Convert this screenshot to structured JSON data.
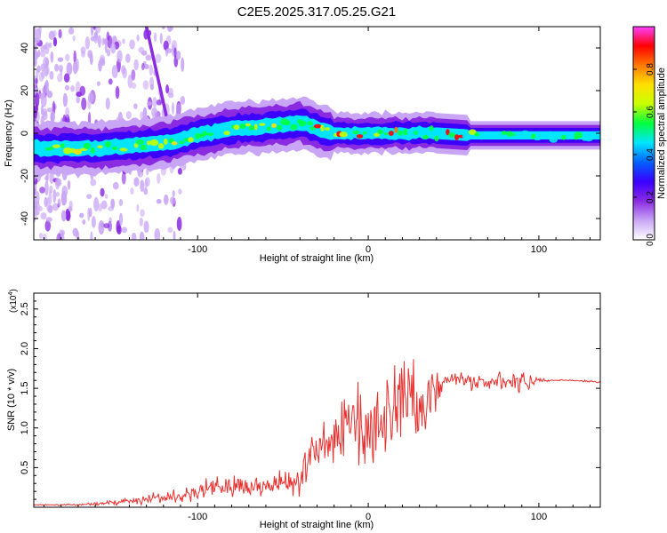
{
  "title": "C2E5.2025.317.05.25.G21",
  "chart_data": [
    {
      "type": "heatmap",
      "name": "spectrogram",
      "xlabel": "Height of straight line (km)",
      "ylabel": "Frequency (Hz)",
      "xlim": [
        -196,
        136
      ],
      "ylim": [
        -50,
        50
      ],
      "xticks": [
        -100,
        0,
        100
      ],
      "xtick_labels": [
        "-100",
        "0",
        "100"
      ],
      "yticks": [
        -40,
        -20,
        0,
        20,
        40
      ],
      "ytick_labels": [
        "-40",
        "-20",
        "0",
        "20",
        "40"
      ],
      "colorbar": {
        "label": "Normalized spectral amplitude",
        "range": [
          0,
          1
        ],
        "ticks": [
          0.0,
          0.2,
          0.4,
          0.6,
          0.8
        ],
        "tick_labels": [
          "0.0",
          "0.2",
          "0.4",
          "0.6",
          "0.8"
        ],
        "colors": [
          "#ffffff",
          "#c9a6f5",
          "#8a2be2",
          "#3b00ff",
          "#0060ff",
          "#00e5ff",
          "#00ff40",
          "#c8ff00",
          "#ffe000",
          "#ff7a00",
          "#ff0000",
          "#ff40ff"
        ]
      },
      "ridge": {
        "x": [
          -196,
          -180,
          -160,
          -140,
          -125,
          -110,
          -95,
          -80,
          -65,
          -50,
          -38,
          -30,
          -20,
          -10,
          0,
          20,
          40,
          60,
          80,
          100,
          120,
          136
        ],
        "freq": [
          -7,
          -7,
          -7,
          -6,
          -5,
          -3,
          0,
          2,
          3,
          4,
          5,
          2,
          0,
          0,
          0,
          0,
          0,
          -1,
          -1,
          -1,
          -1,
          -1
        ]
      },
      "streak": {
        "x": [
          -130,
          -118
        ],
        "freq": [
          50,
          7
        ]
      }
    },
    {
      "type": "line",
      "name": "snr",
      "xlabel": "Height of straight line (km)",
      "ylabel": "SNR (10 * v/v)",
      "scale_label": "(x10",
      "scale_exponent": "4",
      "scale_suffix": ")",
      "xlim": [
        -196,
        136
      ],
      "ylim": [
        0,
        2.7
      ],
      "xticks": [
        -100,
        0,
        100
      ],
      "xtick_labels": [
        "-100",
        "0",
        "100"
      ],
      "yticks": [
        0.5,
        1.0,
        1.5,
        2.0,
        2.5
      ],
      "ytick_labels": [
        "0.5",
        "1.0",
        "1.5",
        "2.0",
        "2.5"
      ],
      "color": "#e8312f",
      "series": [
        {
          "name": "SNR",
          "x": [
            -196,
            -170,
            -150,
            -130,
            -110,
            -100,
            -90,
            -80,
            -70,
            -60,
            -50,
            -40,
            -35,
            -30,
            -25,
            -20,
            -15,
            -10,
            -5,
            0,
            5,
            10,
            15,
            20,
            25,
            30,
            35,
            40,
            45,
            50,
            60,
            70,
            80,
            90,
            95,
            100,
            105,
            110,
            120,
            136
          ],
          "mean": [
            0.03,
            0.03,
            0.06,
            0.1,
            0.15,
            0.2,
            0.24,
            0.28,
            0.27,
            0.25,
            0.3,
            0.35,
            0.55,
            0.75,
            0.85,
            0.9,
            0.95,
            1.0,
            1.1,
            0.9,
            1.2,
            1.3,
            1.2,
            1.3,
            1.35,
            1.3,
            1.3,
            1.5,
            1.62,
            1.62,
            1.58,
            1.57,
            1.57,
            1.58,
            1.56,
            1.6,
            1.6,
            1.6,
            1.6,
            1.58
          ],
          "spread": [
            0.01,
            0.01,
            0.04,
            0.07,
            0.1,
            0.15,
            0.18,
            0.2,
            0.18,
            0.15,
            0.2,
            0.25,
            0.3,
            0.35,
            0.4,
            0.4,
            0.45,
            0.5,
            0.5,
            0.6,
            0.6,
            0.65,
            0.7,
            0.7,
            0.7,
            0.65,
            0.6,
            0.3,
            0.08,
            0.1,
            0.12,
            0.14,
            0.14,
            0.14,
            0.15,
            0.04,
            0.02,
            0.01,
            0.01,
            0.02
          ]
        }
      ]
    }
  ]
}
